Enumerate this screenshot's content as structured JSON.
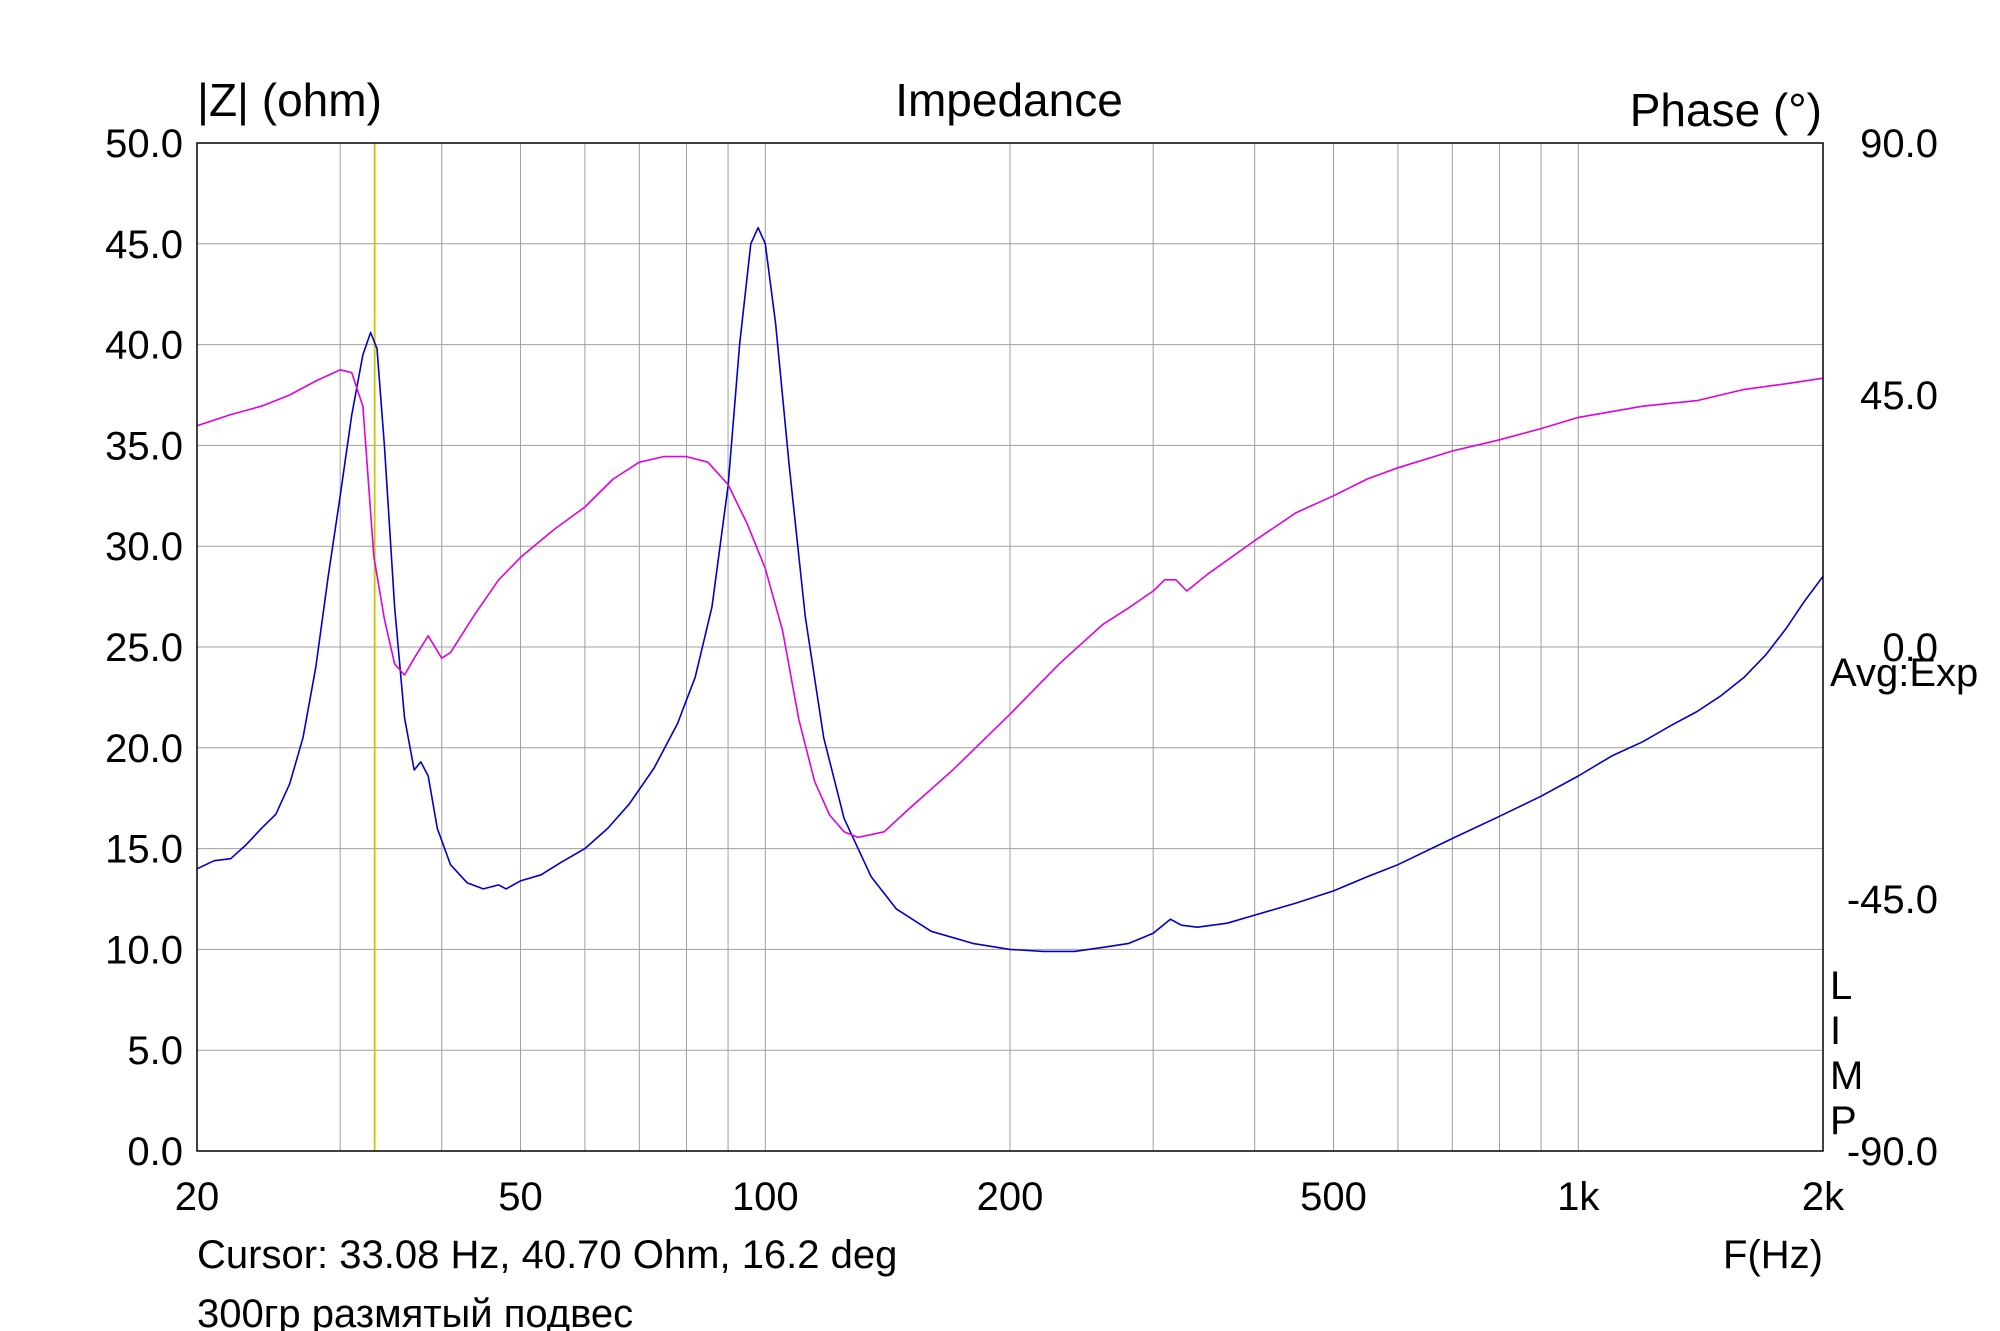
{
  "chart_data": {
    "type": "line",
    "title": "Impedance",
    "ylabel_left": "|Z| (ohm)",
    "ylabel_right": "Phase (°)",
    "xlabel": "F(Hz)",
    "x_scale": "log",
    "xlim": [
      20,
      2000
    ],
    "ylim_left": [
      0,
      50
    ],
    "ylim_right": [
      -90,
      90
    ],
    "grid": true,
    "x_ticks": [
      20,
      50,
      100,
      200,
      500,
      1000,
      2000
    ],
    "x_tick_labels": [
      "20",
      "50",
      "100",
      "200",
      "500",
      "1k",
      "2k"
    ],
    "y_left_ticks": [
      0,
      5,
      10,
      15,
      20,
      25,
      30,
      35,
      40,
      45,
      50
    ],
    "y_left_tick_labels": [
      "0.0",
      "5.0",
      "10.0",
      "15.0",
      "20.0",
      "25.0",
      "30.0",
      "35.0",
      "40.0",
      "45.0",
      "50.0"
    ],
    "y_right_ticks": [
      -90,
      -45,
      0,
      45,
      90
    ],
    "y_right_tick_labels": [
      "-90.0",
      "-45.0",
      "0.0",
      "45.0",
      "90.0"
    ],
    "side_text": "Avg:Exp",
    "side_letters": [
      "L",
      "I",
      "M",
      "P"
    ],
    "cursor": {
      "x": 33.08,
      "label": "Cursor: 33.08 Hz, 40.70 Ohm, 16.2 deg",
      "color": "#c8c800"
    },
    "note": "300гр размятый подвес",
    "series": [
      {
        "axis": "left",
        "color": "#0000cc",
        "points": [
          [
            20,
            14.0
          ],
          [
            21,
            14.4
          ],
          [
            22,
            14.5
          ],
          [
            23,
            15.2
          ],
          [
            24,
            16.0
          ],
          [
            25,
            16.7
          ],
          [
            26,
            18.2
          ],
          [
            27,
            20.5
          ],
          [
            28,
            24.0
          ],
          [
            29,
            28.5
          ],
          [
            30,
            32.5
          ],
          [
            31,
            36.5
          ],
          [
            32,
            39.5
          ],
          [
            32.7,
            40.6
          ],
          [
            33.3,
            39.8
          ],
          [
            34,
            35.0
          ],
          [
            35,
            27.0
          ],
          [
            36,
            21.5
          ],
          [
            37,
            18.9
          ],
          [
            37.7,
            19.3
          ],
          [
            38.5,
            18.6
          ],
          [
            39.5,
            16.0
          ],
          [
            41,
            14.2
          ],
          [
            43,
            13.3
          ],
          [
            45,
            13.0
          ],
          [
            47,
            13.2
          ],
          [
            48,
            13.0
          ],
          [
            50,
            13.4
          ],
          [
            53,
            13.7
          ],
          [
            56,
            14.3
          ],
          [
            60,
            15.0
          ],
          [
            64,
            16.0
          ],
          [
            68,
            17.2
          ],
          [
            73,
            19.0
          ],
          [
            78,
            21.2
          ],
          [
            82,
            23.5
          ],
          [
            86,
            27.0
          ],
          [
            90,
            33.0
          ],
          [
            93,
            40.0
          ],
          [
            96,
            45.0
          ],
          [
            98,
            45.8
          ],
          [
            100,
            45.0
          ],
          [
            103,
            41.0
          ],
          [
            107,
            34.0
          ],
          [
            112,
            26.5
          ],
          [
            118,
            20.5
          ],
          [
            125,
            16.5
          ],
          [
            135,
            13.6
          ],
          [
            145,
            12.0
          ],
          [
            160,
            10.9
          ],
          [
            180,
            10.3
          ],
          [
            200,
            10.0
          ],
          [
            220,
            9.9
          ],
          [
            240,
            9.9
          ],
          [
            260,
            10.1
          ],
          [
            280,
            10.3
          ],
          [
            300,
            10.8
          ],
          [
            315,
            11.5
          ],
          [
            325,
            11.2
          ],
          [
            340,
            11.1
          ],
          [
            370,
            11.3
          ],
          [
            400,
            11.7
          ],
          [
            450,
            12.3
          ],
          [
            500,
            12.9
          ],
          [
            550,
            13.6
          ],
          [
            600,
            14.2
          ],
          [
            700,
            15.5
          ],
          [
            800,
            16.6
          ],
          [
            900,
            17.6
          ],
          [
            1000,
            18.6
          ],
          [
            1100,
            19.6
          ],
          [
            1200,
            20.3
          ],
          [
            1300,
            21.1
          ],
          [
            1400,
            21.8
          ],
          [
            1500,
            22.6
          ],
          [
            1600,
            23.5
          ],
          [
            1700,
            24.6
          ],
          [
            1800,
            25.9
          ],
          [
            1900,
            27.3
          ],
          [
            2000,
            28.5
          ]
        ]
      },
      {
        "axis": "right",
        "color": "#e000e0",
        "points": [
          [
            20,
            39.5
          ],
          [
            22,
            41.5
          ],
          [
            24,
            43
          ],
          [
            26,
            45
          ],
          [
            28,
            47.5
          ],
          [
            30,
            49.5
          ],
          [
            31,
            49
          ],
          [
            32,
            43
          ],
          [
            33,
            16.2
          ],
          [
            34,
            5
          ],
          [
            35,
            -3
          ],
          [
            36,
            -5
          ],
          [
            37,
            -2
          ],
          [
            38.5,
            2
          ],
          [
            40,
            -2
          ],
          [
            41,
            -1
          ],
          [
            44,
            6
          ],
          [
            47,
            12
          ],
          [
            50,
            16
          ],
          [
            55,
            21
          ],
          [
            60,
            25
          ],
          [
            65,
            30
          ],
          [
            70,
            33
          ],
          [
            75,
            34
          ],
          [
            80,
            34
          ],
          [
            85,
            33
          ],
          [
            90,
            29
          ],
          [
            95,
            22
          ],
          [
            100,
            14
          ],
          [
            105,
            3
          ],
          [
            110,
            -13
          ],
          [
            115,
            -24
          ],
          [
            120,
            -30
          ],
          [
            125,
            -33
          ],
          [
            130,
            -34
          ],
          [
            140,
            -33
          ],
          [
            150,
            -29
          ],
          [
            170,
            -22
          ],
          [
            200,
            -12
          ],
          [
            230,
            -3
          ],
          [
            260,
            4
          ],
          [
            280,
            7
          ],
          [
            300,
            10
          ],
          [
            310,
            12
          ],
          [
            320,
            12
          ],
          [
            330,
            10
          ],
          [
            350,
            13
          ],
          [
            400,
            19
          ],
          [
            450,
            24
          ],
          [
            500,
            27
          ],
          [
            550,
            30
          ],
          [
            600,
            32
          ],
          [
            700,
            35
          ],
          [
            800,
            37
          ],
          [
            900,
            39
          ],
          [
            1000,
            41
          ],
          [
            1200,
            43
          ],
          [
            1400,
            44
          ],
          [
            1600,
            46
          ],
          [
            1800,
            47
          ],
          [
            2000,
            48
          ]
        ]
      }
    ]
  }
}
